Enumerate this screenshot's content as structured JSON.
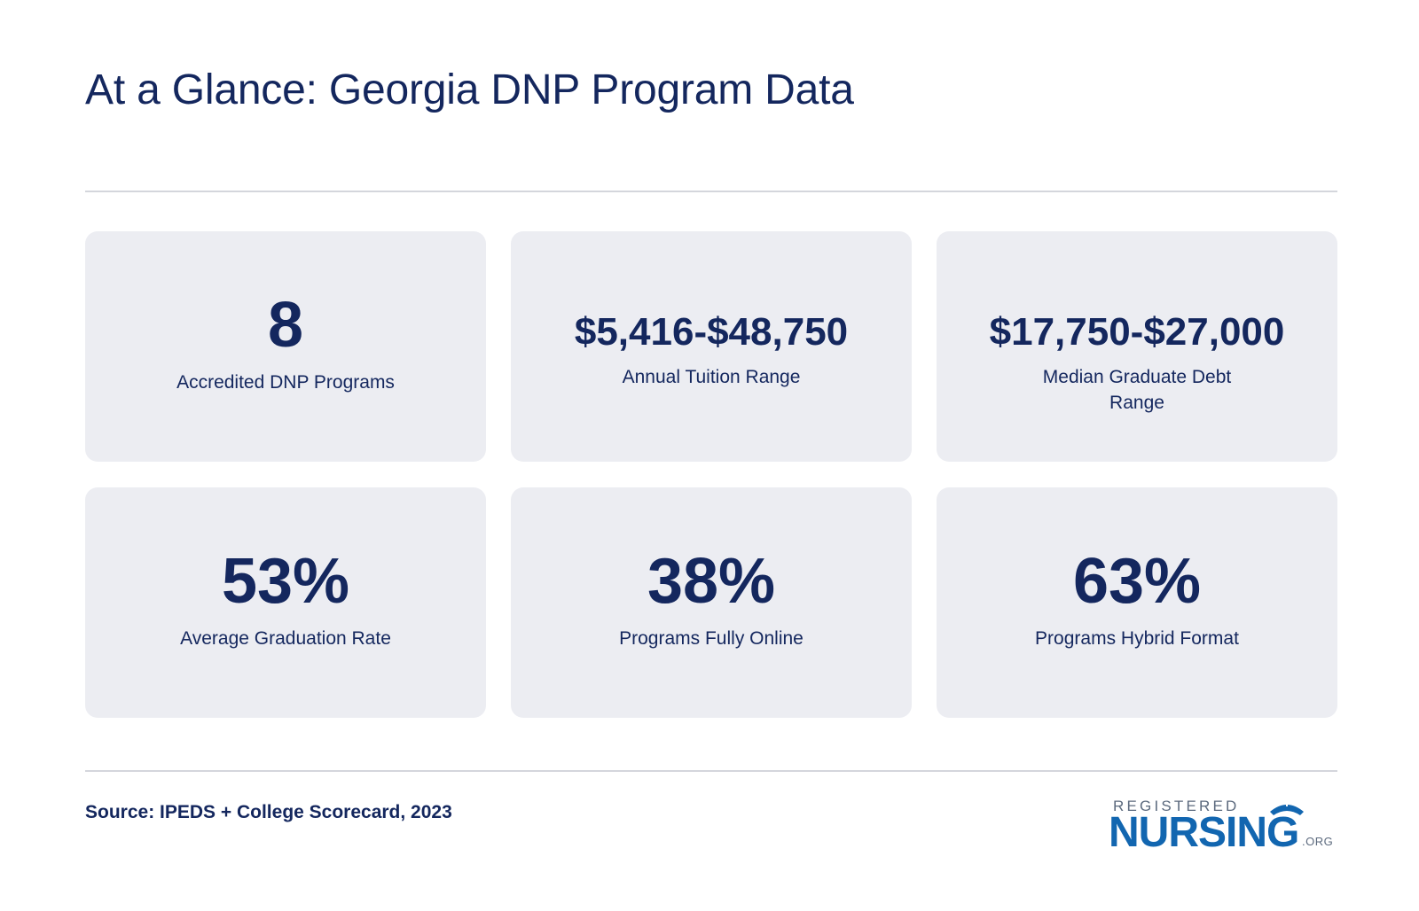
{
  "header": {
    "title": "At a Glance: Georgia DNP Program Data"
  },
  "stats": [
    {
      "value": "8",
      "label": "Accredited DNP Programs"
    },
    {
      "value": "$5,416-$48,750",
      "label": "Annual Tuition Range"
    },
    {
      "value": "$17,750-$27,000",
      "label": "Median Graduate Debt Range"
    },
    {
      "value": "53%",
      "label": "Average Graduation Rate"
    },
    {
      "value": "38%",
      "label": "Programs Fully Online"
    },
    {
      "value": "63%",
      "label": "Programs Hybrid Format"
    }
  ],
  "footer": {
    "source": "Source: IPEDS + College Scorecard, 2023"
  },
  "logo": {
    "line1": "REGISTERED",
    "line2": "NURSING",
    "suffix": ".ORG",
    "icon": "nurse-cap-icon"
  },
  "colors": {
    "text": "#14275e",
    "card_bg": "#ecedf2",
    "rule": "#d4d6dc",
    "logo_blue": "#1266b0",
    "logo_gray": "#5c6a7e"
  }
}
